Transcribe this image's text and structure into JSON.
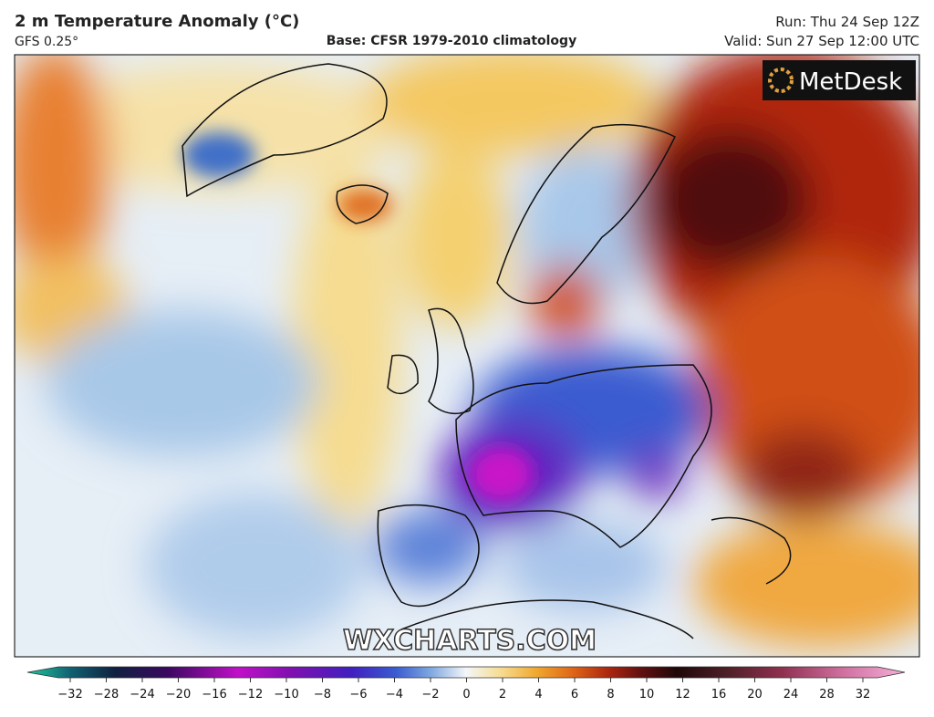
{
  "header": {
    "title": "2 m Temperature Anomaly (°C)",
    "subtitle": "GFS 0.25°",
    "base": "Base: CFSR 1979-2010 climatology",
    "run": "Run: Thu 24 Sep 12Z",
    "valid": "Valid: Sun 27 Sep 12:00 UTC"
  },
  "map": {
    "logo": "MetDesk",
    "watermark": "WXCHARTS.COM"
  },
  "colorbar": {
    "ticks": [
      "−32",
      "−28",
      "−24",
      "−20",
      "−16",
      "−12",
      "−10",
      "−8",
      "−6",
      "−4",
      "−2",
      "0",
      "2",
      "4",
      "6",
      "8",
      "10",
      "12",
      "16",
      "20",
      "24",
      "28",
      "32"
    ]
  }
}
